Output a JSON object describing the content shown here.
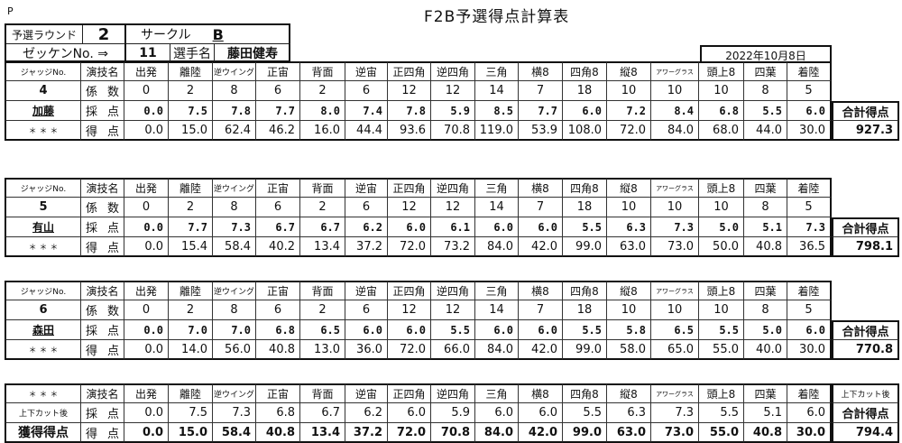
{
  "page_mark": "P",
  "title": "F2B予選得点計算表",
  "header": {
    "round_label": "予選ラウンド",
    "round": "2",
    "circle_label": "サークル",
    "circle": "B",
    "bib_label": "ゼッケンNo. ⇒",
    "bib": "11",
    "competitor_label": "選手名",
    "competitor": "藤田健寿",
    "date": "2022年10月8日"
  },
  "labels": {
    "judge_no": "ジャッジNo.",
    "maneuver": "演技名",
    "coefficient": [
      "係",
      "数"
    ],
    "score": [
      "採",
      "点"
    ],
    "points": [
      "得",
      "点"
    ],
    "stars": "＊ ＊ ＊",
    "total": "合計得点",
    "after_cut": "上下カット後",
    "earned": "獲得得点"
  },
  "maneuvers": [
    "出発",
    "離陸",
    "逆ウイング",
    "正宙",
    "背面",
    "逆宙",
    "正四角",
    "逆四角",
    "三角",
    "横8",
    "四角8",
    "縦8",
    "アワーグラス",
    "頭上8",
    "四葉",
    "着陸"
  ],
  "coefficients": [
    "0",
    "2",
    "8",
    "6",
    "2",
    "6",
    "12",
    "12",
    "14",
    "7",
    "18",
    "10",
    "10",
    "10",
    "8",
    "5"
  ],
  "judges": [
    {
      "no": "4",
      "name": "加藤",
      "scores": [
        "0.0",
        "7.5",
        "7.8",
        "7.7",
        "8.0",
        "7.4",
        "7.8",
        "5.9",
        "8.5",
        "7.7",
        "6.0",
        "7.2",
        "8.4",
        "6.8",
        "5.5",
        "6.0"
      ],
      "points": [
        "0.0",
        "15.0",
        "62.4",
        "46.2",
        "16.0",
        "44.4",
        "93.6",
        "70.8",
        "119.0",
        "53.9",
        "108.0",
        "72.0",
        "84.0",
        "68.0",
        "44.0",
        "30.0"
      ],
      "total": "927.3"
    },
    {
      "no": "5",
      "name": "有山",
      "scores": [
        "0.0",
        "7.7",
        "7.3",
        "6.7",
        "6.7",
        "6.2",
        "6.0",
        "6.1",
        "6.0",
        "6.0",
        "5.5",
        "6.3",
        "7.3",
        "5.0",
        "5.1",
        "7.3"
      ],
      "points": [
        "0.0",
        "15.4",
        "58.4",
        "40.2",
        "13.4",
        "37.2",
        "72.0",
        "73.2",
        "84.0",
        "42.0",
        "99.0",
        "63.0",
        "73.0",
        "50.0",
        "40.8",
        "36.5"
      ],
      "total": "798.1"
    },
    {
      "no": "6",
      "name": "森田",
      "scores": [
        "0.0",
        "7.0",
        "7.0",
        "6.8",
        "6.5",
        "6.0",
        "6.0",
        "5.5",
        "6.0",
        "6.0",
        "5.5",
        "5.8",
        "6.5",
        "5.5",
        "5.0",
        "6.0"
      ],
      "points": [
        "0.0",
        "14.0",
        "56.0",
        "40.8",
        "13.0",
        "36.0",
        "72.0",
        "66.0",
        "84.0",
        "42.0",
        "99.0",
        "58.0",
        "65.0",
        "55.0",
        "40.0",
        "30.0"
      ],
      "total": "770.8"
    }
  ],
  "final": {
    "scores": [
      "0.0",
      "7.5",
      "7.3",
      "6.8",
      "6.7",
      "6.2",
      "6.0",
      "5.9",
      "6.0",
      "6.0",
      "5.5",
      "6.3",
      "7.3",
      "5.5",
      "5.1",
      "6.0"
    ],
    "points": [
      "0.0",
      "15.0",
      "58.4",
      "40.8",
      "13.4",
      "37.2",
      "72.0",
      "70.8",
      "84.0",
      "42.0",
      "99.0",
      "63.0",
      "73.0",
      "55.0",
      "40.8",
      "30.0"
    ],
    "total": "794.4"
  }
}
